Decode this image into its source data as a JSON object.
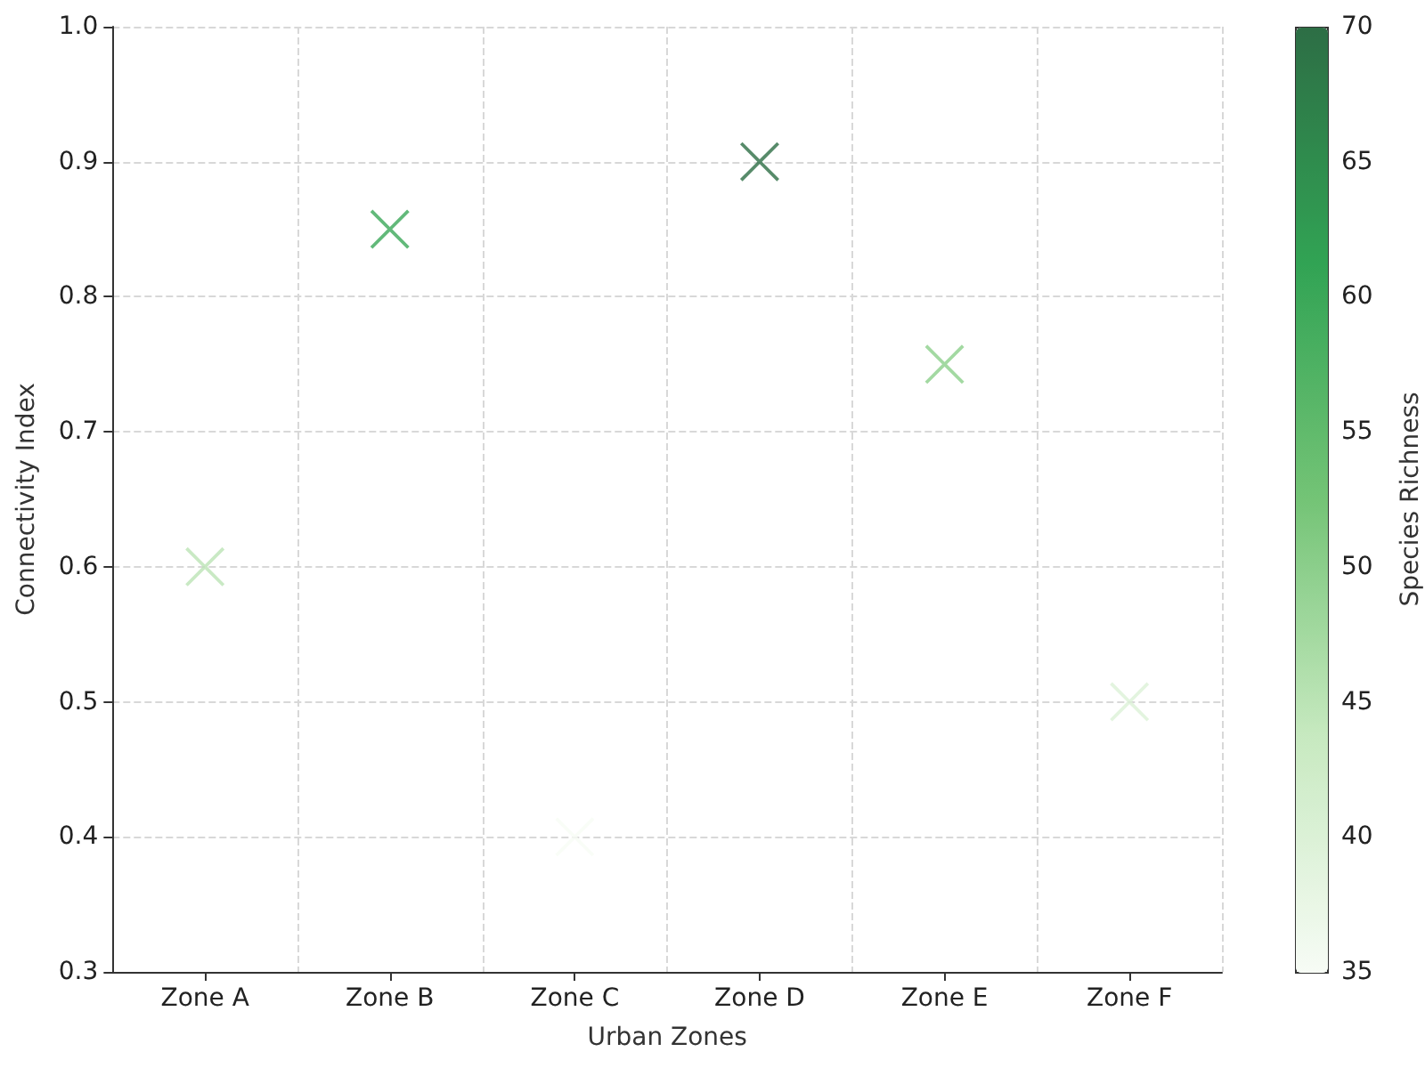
{
  "chart_data": {
    "type": "scatter",
    "xlabel": "Urban Zones",
    "ylabel": "Connectivity Index",
    "clabel": "Species Richness",
    "categories": [
      "Zone A",
      "Zone B",
      "Zone C",
      "Zone D",
      "Zone E",
      "Zone F"
    ],
    "values": [
      0.6,
      0.85,
      0.4,
      0.9,
      0.75,
      0.5
    ],
    "cvalues": [
      45,
      60,
      35,
      70,
      50,
      40
    ],
    "ylim": [
      0.3,
      1.0
    ],
    "yticks": [
      0.3,
      0.4,
      0.5,
      0.6,
      0.7,
      0.8,
      0.9,
      {
        "value": 1,
        "label": "1.0"
      }
    ],
    "clim": [
      35,
      70
    ],
    "cticks": [
      35,
      40,
      45,
      50,
      55,
      60,
      65,
      70
    ],
    "marker": "cross",
    "grid": true
  }
}
